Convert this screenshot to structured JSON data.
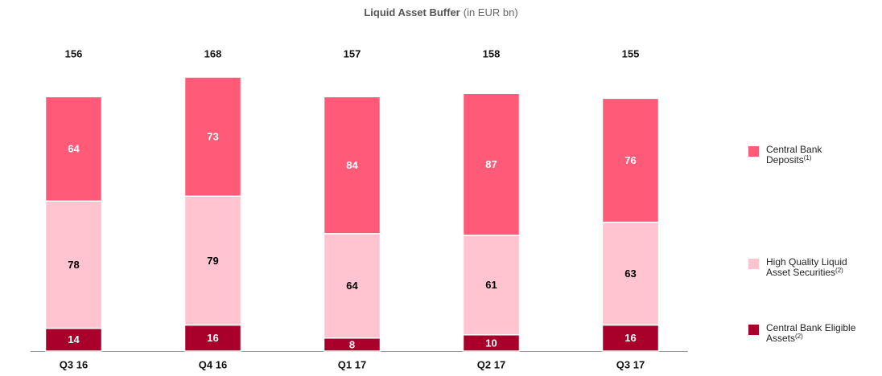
{
  "chart_data": {
    "type": "stacked_bar",
    "title": "Liquid Asset Buffer",
    "subtitle": "(in EUR bn)",
    "categories": [
      "Q3 16",
      "Q4 16",
      "Q1 17",
      "Q2 17",
      "Q3 17"
    ],
    "totals": [
      156,
      168,
      157,
      158,
      155
    ],
    "series": [
      {
        "name": "Central Bank Eligible Assets",
        "note": "(2)",
        "color": "#a8002a",
        "label_color": "#ffffff",
        "values": [
          14,
          16,
          8,
          10,
          16
        ]
      },
      {
        "name": "High Quality Liquid Asset Securities",
        "note": "(2)",
        "color": "#ffc4cf",
        "label_color": "#000000",
        "values": [
          78,
          79,
          64,
          61,
          63
        ]
      },
      {
        "name": "Central Bank Deposits",
        "note": "(1)",
        "color": "#ff5a78",
        "label_color": "#ffffff",
        "values": [
          64,
          73,
          84,
          87,
          76
        ]
      }
    ],
    "legend": "right"
  }
}
